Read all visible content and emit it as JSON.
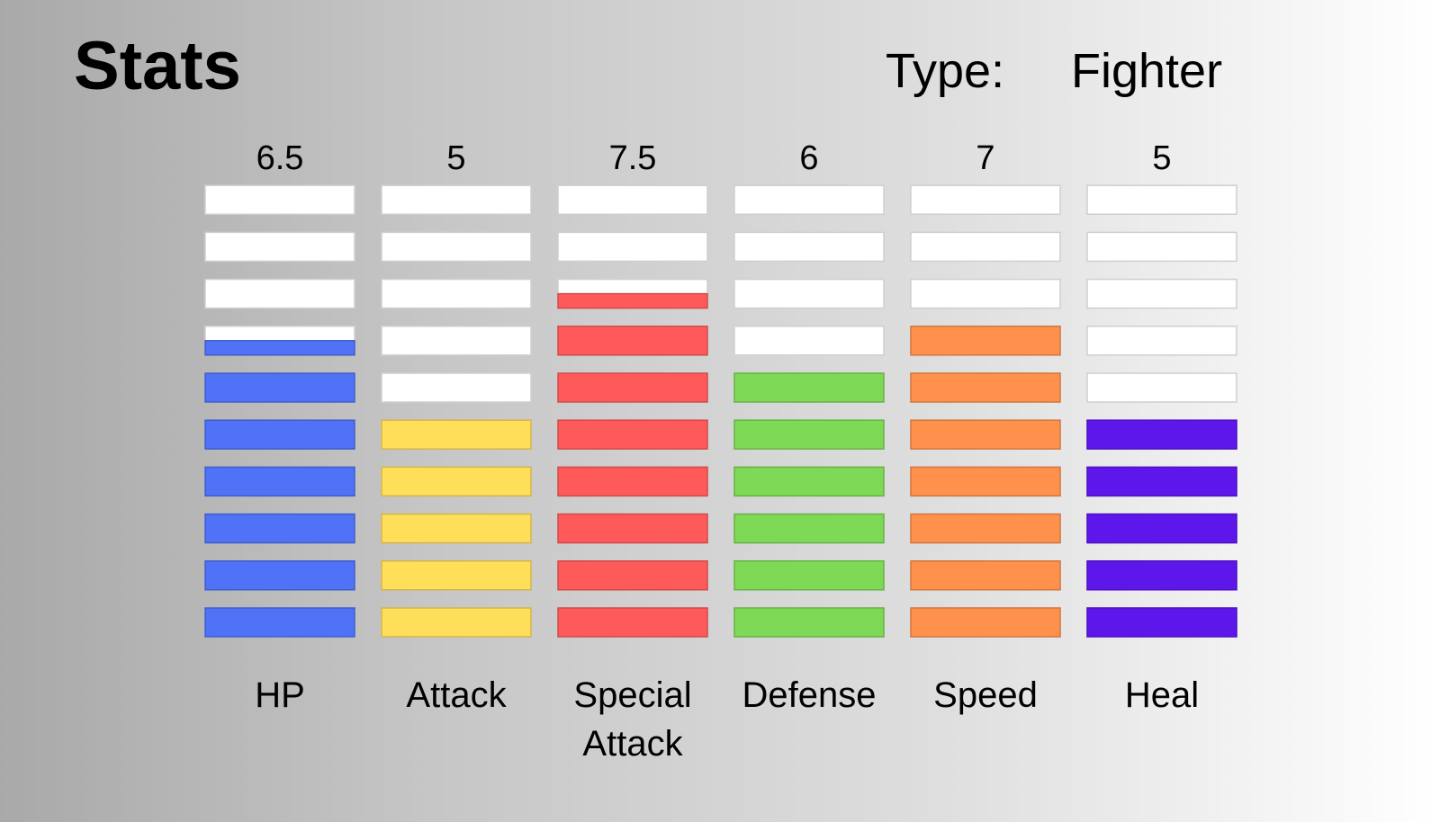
{
  "header": {
    "title": "Stats",
    "type_label": "Type:",
    "type_value": "Fighter"
  },
  "chart_data": {
    "type": "bar",
    "categories": [
      "HP",
      "Attack",
      "Special Attack",
      "Defense",
      "Speed",
      "Heal"
    ],
    "category_lines": [
      [
        "HP"
      ],
      [
        "Attack"
      ],
      [
        "Special",
        "Attack"
      ],
      [
        "Defense"
      ],
      [
        "Speed"
      ],
      [
        "Heal"
      ]
    ],
    "values": [
      6.5,
      5,
      7.5,
      6,
      7,
      5
    ],
    "value_labels": [
      "6.5",
      "5",
      "7.5",
      "6",
      "7",
      "5"
    ],
    "max": 10,
    "colors": [
      "#4f72f6",
      "#ffde5a",
      "#ff5a5a",
      "#7ed956",
      "#ff914d",
      "#5e17eb"
    ],
    "empty_color": "#ffffff"
  }
}
